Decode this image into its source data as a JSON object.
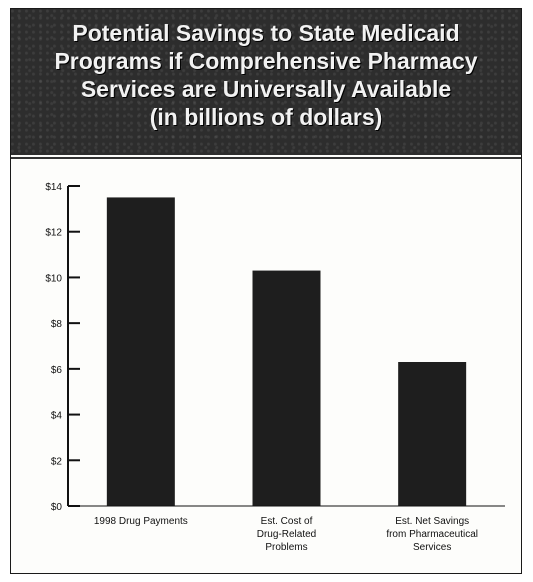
{
  "chart_data": {
    "type": "bar",
    "title": "Potential Savings to State Medicaid\nPrograms if Comprehensive Pharmacy\nServices are Universally Available\n(in billions of dollars)",
    "categories": [
      [
        "1998 Drug Payments"
      ],
      [
        "Est. Cost of",
        "Drug-Related",
        "Problems"
      ],
      [
        "Est. Net Savings",
        "from Pharmaceutical",
        "Services"
      ]
    ],
    "values": [
      13.5,
      10.3,
      6.3
    ],
    "ylim": [
      0,
      14
    ],
    "yticks": [
      0,
      2,
      4,
      6,
      8,
      10,
      12,
      14
    ],
    "ytick_labels": [
      "$0",
      "$2",
      "$4",
      "$6",
      "$8",
      "$10",
      "$12",
      "$14"
    ],
    "xlabel": "",
    "ylabel": "",
    "grid": false,
    "bar_color": "#1e1e1e"
  }
}
